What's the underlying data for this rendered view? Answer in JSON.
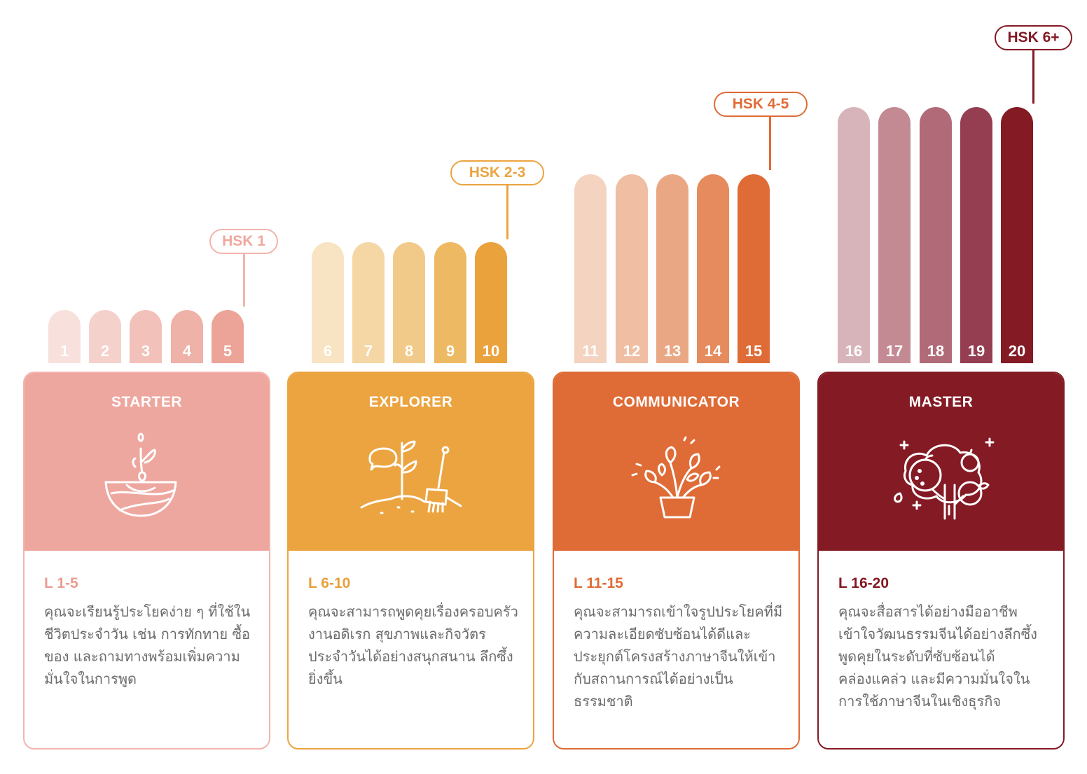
{
  "hsk_labels": [
    "HSK 1",
    "HSK 2-3",
    "HSK 4-5",
    "HSK 6+"
  ],
  "levels": [
    {
      "num": "1",
      "color": "#f8e1dd"
    },
    {
      "num": "2",
      "color": "#f5d1cb"
    },
    {
      "num": "3",
      "color": "#f2c1b9"
    },
    {
      "num": "4",
      "color": "#efb2a8"
    },
    {
      "num": "5",
      "color": "#eca398"
    },
    {
      "num": "6",
      "color": "#f8e3c2"
    },
    {
      "num": "7",
      "color": "#f5d7a6"
    },
    {
      "num": "8",
      "color": "#f1ca89"
    },
    {
      "num": "9",
      "color": "#edba63"
    },
    {
      "num": "10",
      "color": "#eaa23d"
    },
    {
      "num": "11",
      "color": "#f4d3c1"
    },
    {
      "num": "12",
      "color": "#efbea3"
    },
    {
      "num": "13",
      "color": "#eaa784"
    },
    {
      "num": "14",
      "color": "#e58b5d"
    },
    {
      "num": "15",
      "color": "#df6b36"
    },
    {
      "num": "16",
      "color": "#d7b4b9"
    },
    {
      "num": "17",
      "color": "#c38a94"
    },
    {
      "num": "18",
      "color": "#b06a78"
    },
    {
      "num": "19",
      "color": "#953e52"
    },
    {
      "num": "20",
      "color": "#841a24"
    }
  ],
  "stages": [
    {
      "title": "STARTER",
      "range": "L 1-5",
      "icon": "seedling-icon",
      "color": "#eea79f",
      "border": "#f2b4ac",
      "range_color": "#ec9c92",
      "description": "คุณจะเรียนรู้ประโยคง่าย ๆ ที่ใช้ในชีวิตประจำวัน เช่น การทักทาย ซื้อของ และถามทางพร้อมเพิ่มความมั่นใจในการพูด"
    },
    {
      "title": "EXPLORER",
      "range": "L 6-10",
      "icon": "sprout-rake-icon",
      "color": "#eba440",
      "border": "#eba440",
      "range_color": "#e89f3a",
      "description": "คุณจะสามารถพูดคุยเรื่องครอบครัว งานอดิเรก สุขภาพและกิจวัตรประจำวันได้อย่างสนุกสนาน ลึกซึ้งยิ่งขึ้น"
    },
    {
      "title": "COMMUNICATOR",
      "range": "L 11-15",
      "icon": "potted-plant-icon",
      "color": "#df6b36",
      "border": "#df6b36",
      "range_color": "#df6b36",
      "description": "คุณจะสามารถเข้าใจรูปประโยคที่มีความละเอียดซับซ้อนได้ดีและประยุกต์โครงสร้างภาษาจีนให้เข้ากับสถานการณ์ได้อย่างเป็นธรรมชาติ"
    },
    {
      "title": "MASTER",
      "range": "L 16-20",
      "icon": "fruit-tree-icon",
      "color": "#841a24",
      "border": "#841a24",
      "range_color": "#841a24",
      "description": "คุณจะสื่อสารได้อย่างมืออาชีพ เข้าใจวัฒนธรรมจีนได้อย่างลึกซึ้ง พูดคุยในระดับที่ซับซ้อนได้คล่องแคล่ว และมีความมั่นใจในการใช้ภาษาจีนในเชิงธุรกิจ"
    }
  ]
}
